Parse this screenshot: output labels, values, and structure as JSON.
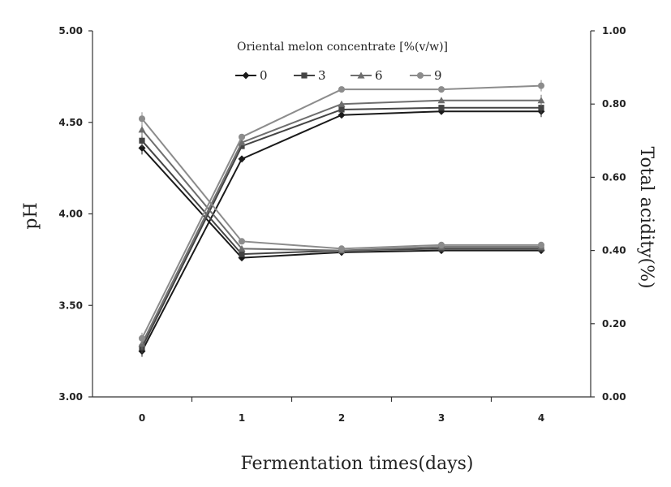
{
  "chart_data": {
    "type": "line",
    "xlabel": "Fermentation times(days)",
    "ylabel_left": "pH",
    "ylabel_right": "Total acidity(%)",
    "x": [
      0,
      1,
      2,
      3,
      4
    ],
    "x_ticks": [
      "0",
      "1",
      "2",
      "3",
      "4"
    ],
    "ylim_left": [
      3.0,
      5.0
    ],
    "ylim_right": [
      0.0,
      1.0
    ],
    "y_ticks_left": [
      "3.00",
      "3.50",
      "4.00",
      "4.50",
      "5.00"
    ],
    "y_ticks_right": [
      "0.00",
      "0.20",
      "0.40",
      "0.60",
      "0.80",
      "1.00"
    ],
    "grid": false,
    "legend": {
      "title": "Oriental melon concentrate [%(v/w)]",
      "placement": "top-center"
    },
    "series": [
      {
        "name": "0",
        "marker": "diamond",
        "color": "#1a1a1a",
        "ph": [
          4.36,
          3.76,
          3.79,
          3.8,
          3.8
        ],
        "acidity": [
          0.125,
          0.65,
          0.77,
          0.78,
          0.78
        ]
      },
      {
        "name": "3",
        "marker": "square",
        "color": "#444444",
        "ph": [
          4.4,
          3.78,
          3.8,
          3.81,
          3.81
        ],
        "acidity": [
          0.135,
          0.685,
          0.785,
          0.79,
          0.79
        ]
      },
      {
        "name": "6",
        "marker": "triangle",
        "color": "#6e6e6e",
        "ph": [
          4.46,
          3.81,
          3.8,
          3.82,
          3.82
        ],
        "acidity": [
          0.145,
          0.695,
          0.8,
          0.81,
          0.81
        ]
      },
      {
        "name": "9",
        "marker": "circle",
        "color": "#8c8c8c",
        "ph": [
          4.52,
          3.85,
          3.81,
          3.83,
          3.83
        ],
        "acidity": [
          0.16,
          0.71,
          0.84,
          0.84,
          0.85
        ]
      }
    ]
  }
}
